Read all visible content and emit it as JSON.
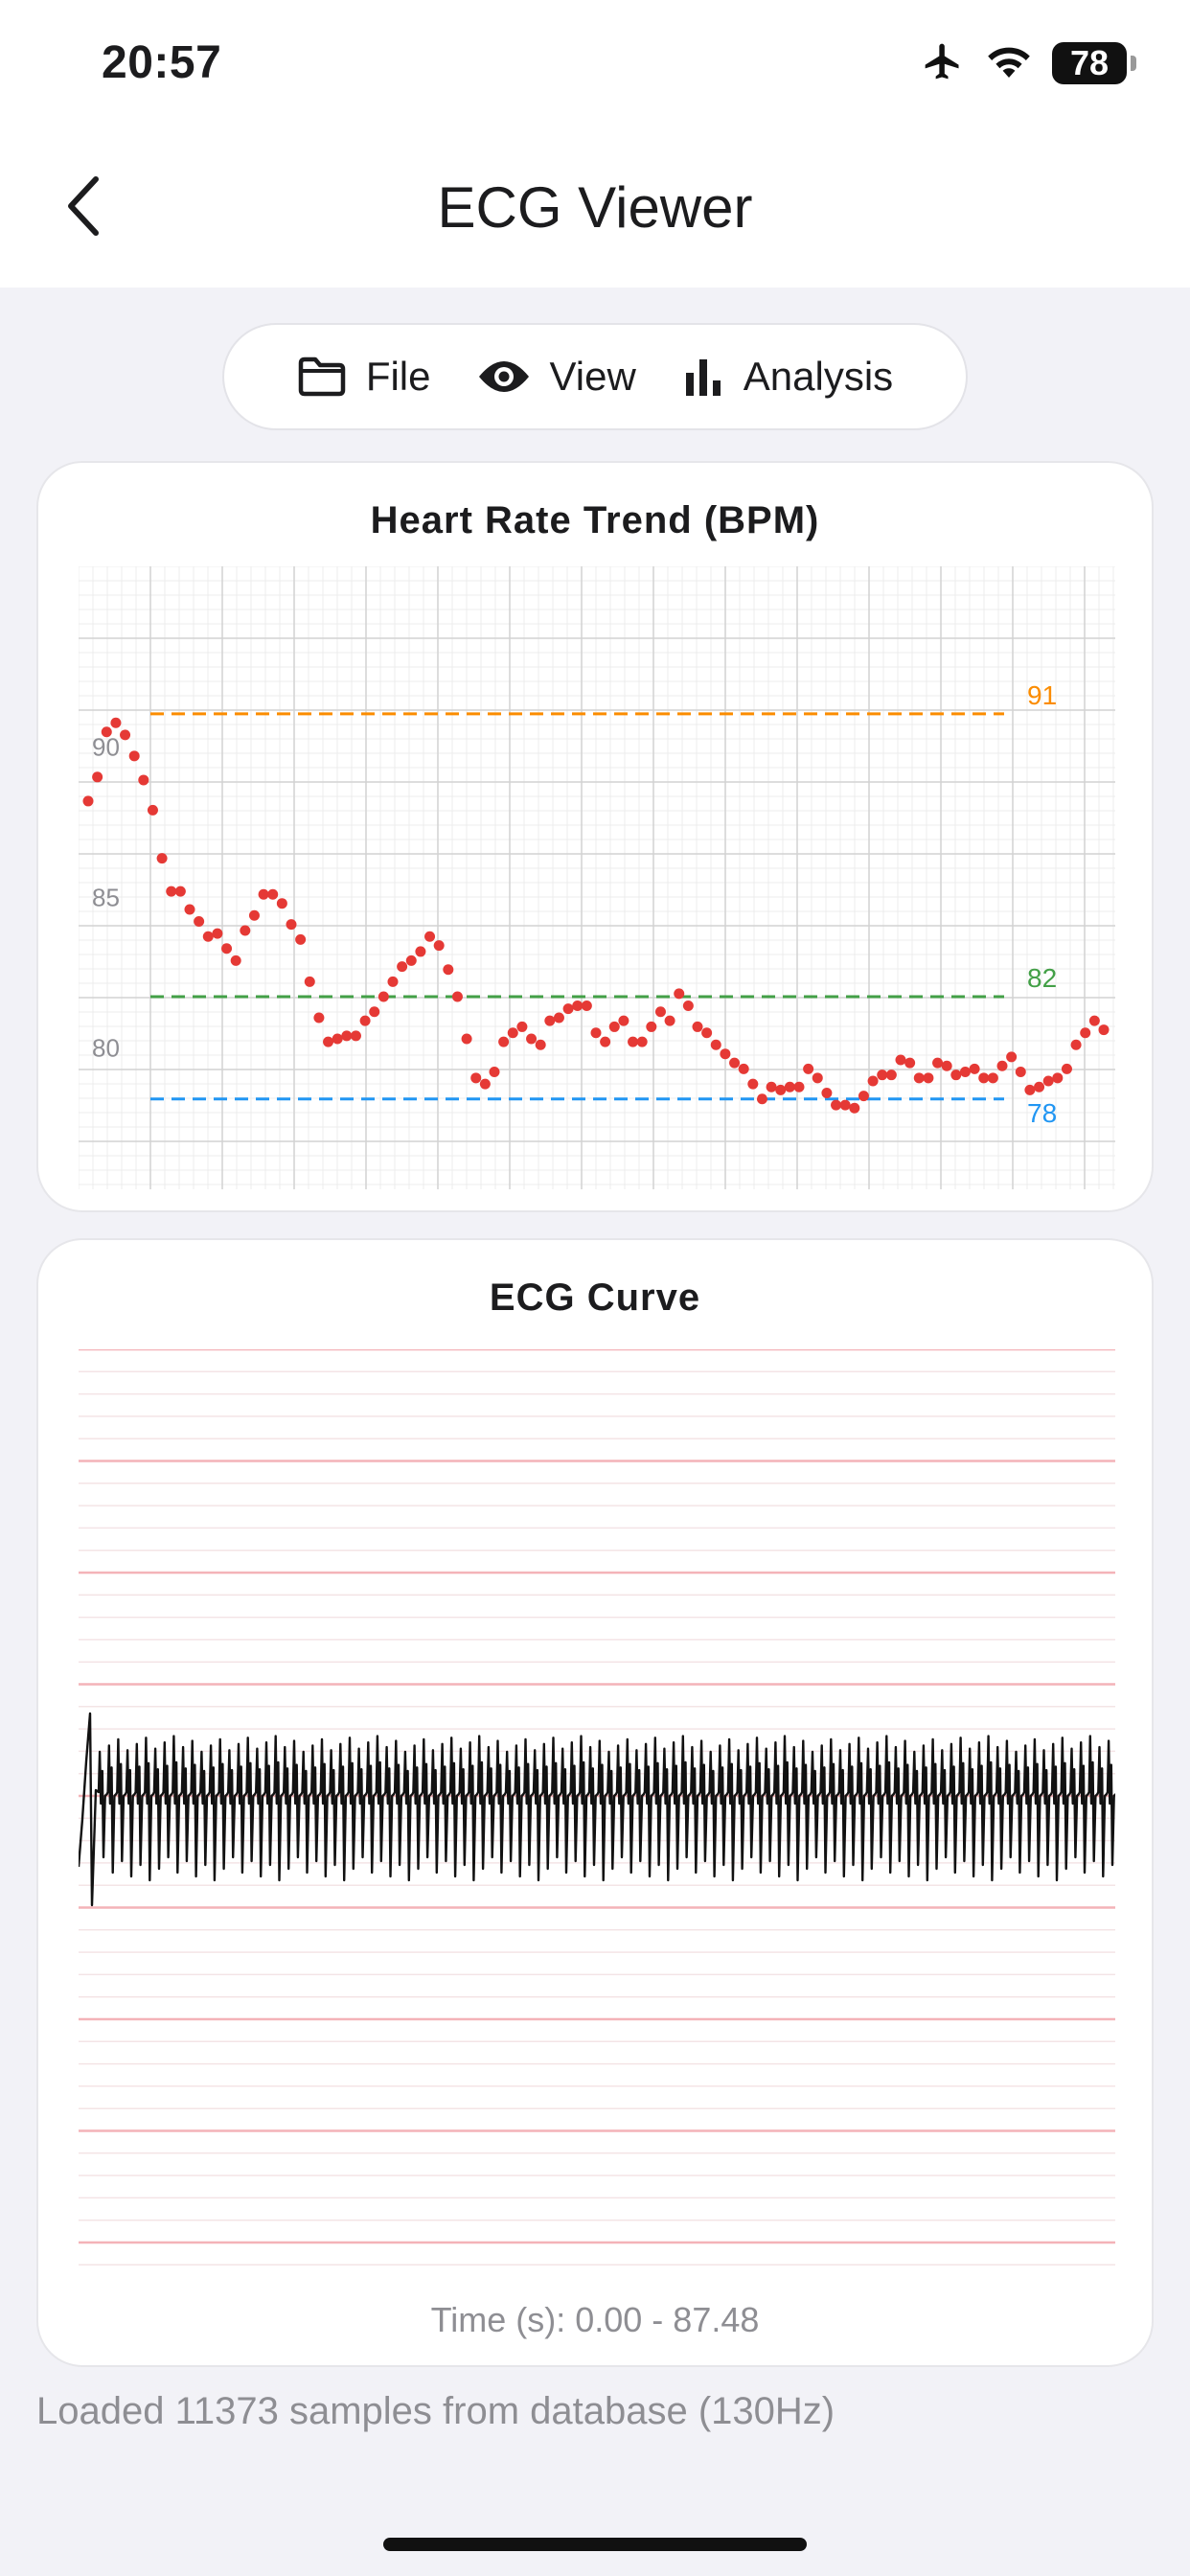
{
  "status_bar": {
    "time": "20:57",
    "battery": "78",
    "icons": [
      "airplane-icon",
      "wifi-icon",
      "battery-icon"
    ]
  },
  "nav": {
    "title": "ECG Viewer",
    "back_icon": "chevron-left-icon"
  },
  "toolbar": {
    "items": [
      {
        "label": "File",
        "icon": "folder-icon"
      },
      {
        "label": "View",
        "icon": "eye-icon"
      },
      {
        "label": "Analysis",
        "icon": "bar-chart-icon"
      }
    ]
  },
  "hr_card": {
    "title": "Heart Rate Trend (BPM)"
  },
  "ecg_card": {
    "title": "ECG Curve",
    "time_range": "Time (s): 0.00 - 87.48"
  },
  "status_message": "Loaded 11373 samples from database (130Hz)",
  "colors": {
    "point": "#e53935",
    "max_line": "#fb8c00",
    "avg_line": "#43a047",
    "min_line": "#2196f3",
    "ecg_major_grid": "#f4b3b8",
    "ecg_minor_grid": "#f4e4e6"
  },
  "chart_data": [
    {
      "type": "scatter",
      "title": "Heart Rate Trend (BPM)",
      "xlabel": "",
      "ylabel": "",
      "ylim": [
        75.2,
        95.9
      ],
      "y_ticks": [
        80,
        85,
        90
      ],
      "reference_lines": [
        {
          "label": "91",
          "value": 91,
          "color": "#fb8c00"
        },
        {
          "label": "82",
          "value": 81.6,
          "color": "#43a047"
        },
        {
          "label": "78",
          "value": 78.2,
          "color": "#2196f3"
        }
      ],
      "grid": true,
      "values": [
        88.1,
        88.9,
        90.4,
        90.7,
        90.3,
        89.6,
        88.8,
        87.8,
        86.2,
        85.1,
        85.1,
        84.5,
        84.1,
        83.6,
        83.7,
        83.2,
        82.8,
        83.8,
        84.3,
        85.0,
        85.0,
        84.7,
        84.0,
        83.5,
        82.1,
        80.9,
        80.1,
        80.2,
        80.3,
        80.3,
        80.8,
        81.1,
        81.6,
        82.1,
        82.6,
        82.8,
        83.1,
        83.6,
        83.3,
        82.5,
        81.6,
        80.2,
        78.9,
        78.7,
        79.1,
        80.1,
        80.4,
        80.6,
        80.2,
        80.0,
        80.8,
        80.9,
        81.2,
        81.3,
        81.3,
        80.4,
        80.1,
        80.6,
        80.8,
        80.1,
        80.1,
        80.6,
        81.1,
        80.8,
        81.7,
        81.3,
        80.6,
        80.4,
        80.0,
        79.7,
        79.4,
        79.2,
        78.7,
        78.2,
        78.6,
        78.5,
        78.6,
        78.6,
        79.2,
        78.9,
        78.4,
        78.0,
        78.0,
        77.9,
        78.3,
        78.8,
        79.0,
        79.0,
        79.5,
        79.4,
        78.9,
        78.9,
        79.4,
        79.3,
        79.0,
        79.1,
        79.2,
        78.9,
        78.9,
        79.3,
        79.6,
        79.1,
        78.5,
        78.6,
        78.8,
        78.9,
        79.2,
        80.0,
        80.4,
        80.8,
        80.5
      ]
    },
    {
      "type": "line",
      "title": "ECG Curve",
      "xlabel": "Time (s): 0.00 - 87.48",
      "xlim": [
        0.0,
        87.48
      ],
      "sample_rate_hz": 130,
      "samples": 11373,
      "beats": 112,
      "grid": true
    }
  ]
}
